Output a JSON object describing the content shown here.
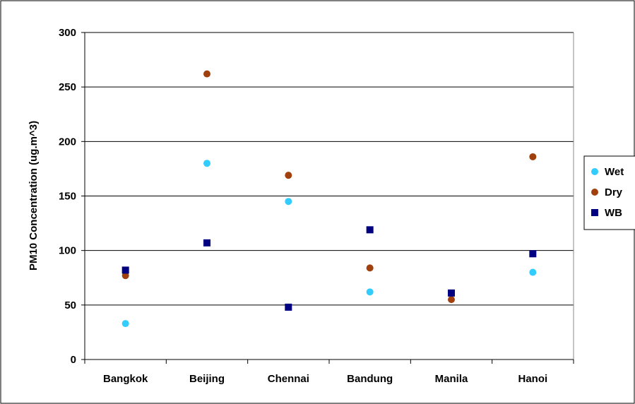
{
  "chart_data": {
    "type": "scatter",
    "title": "",
    "xlabel": "",
    "ylabel": "PM10 Concentration (ug.m^3)",
    "categories": [
      "Bangkok",
      "Beijing",
      "Chennai",
      "Bandung",
      "Manila",
      "Hanoi"
    ],
    "ylim": [
      0,
      300
    ],
    "yticks": [
      0,
      50,
      100,
      150,
      200,
      250,
      300
    ],
    "grid": "horizontal",
    "legend_position": "right",
    "series": [
      {
        "name": "Wet",
        "marker": "circle",
        "color": "#33ccff",
        "values": [
          33,
          180,
          145,
          62,
          null,
          80
        ]
      },
      {
        "name": "Dry",
        "marker": "circle",
        "color": "#a0410d",
        "values": [
          77,
          262,
          169,
          84,
          55,
          186
        ]
      },
      {
        "name": "WB",
        "marker": "square",
        "color": "#000080",
        "values": [
          82,
          107,
          48,
          119,
          61,
          97
        ]
      }
    ]
  }
}
